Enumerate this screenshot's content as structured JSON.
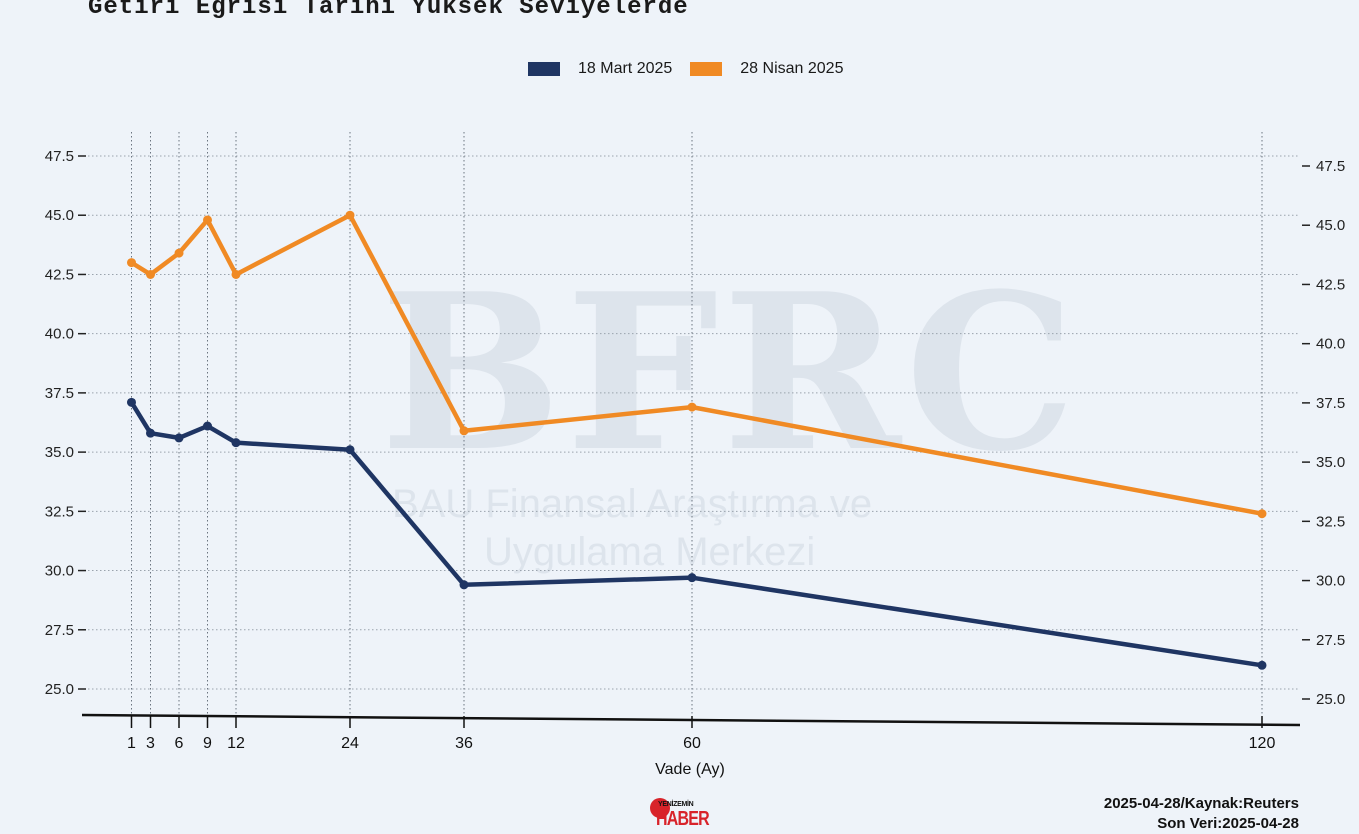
{
  "title": "Getiri Eğrisi Tarihi Yüksek Seviyelerde",
  "watermark": {
    "logo": "BFRC",
    "line1": "BAU Finansal Araştırma ve",
    "line2": "Uygulama Merkezi"
  },
  "footer": {
    "source": "2025-04-28/Kaynak:Reuters",
    "last_data": "Son Veri:2025-04-28"
  },
  "brand": {
    "small": "YENİZEMİN",
    "big": "HABER"
  },
  "colors": {
    "march": "#1f3563",
    "april": "#f08a24",
    "background": "#eef3f9"
  },
  "chart_data": {
    "type": "line",
    "title": "Getiri Eğrisi Tarihi Yüksek Seviyelerde",
    "xlabel": "Vade (Ay)",
    "ylabel": "",
    "x": [
      1,
      3,
      6,
      9,
      12,
      24,
      36,
      60,
      120
    ],
    "x_ticks": [
      "1",
      "3",
      "6",
      "9",
      "12",
      "24",
      "36",
      "60",
      "120"
    ],
    "ylim": [
      24.5,
      48.0
    ],
    "y_ticks": [
      "25.0",
      "27.5",
      "30.0",
      "32.5",
      "35.0",
      "37.5",
      "40.0",
      "42.5",
      "45.0",
      "47.5"
    ],
    "grid": true,
    "legend": "top-center",
    "series": [
      {
        "name": "18 Mart 2025",
        "color": "#1f3563",
        "values": [
          37.1,
          35.8,
          35.6,
          36.1,
          35.4,
          35.1,
          29.4,
          29.7,
          26.0
        ]
      },
      {
        "name": "28 Nisan 2025",
        "color": "#f08a24",
        "values": [
          43.0,
          42.5,
          43.4,
          44.8,
          42.5,
          45.0,
          35.9,
          36.9,
          32.4
        ]
      }
    ]
  }
}
